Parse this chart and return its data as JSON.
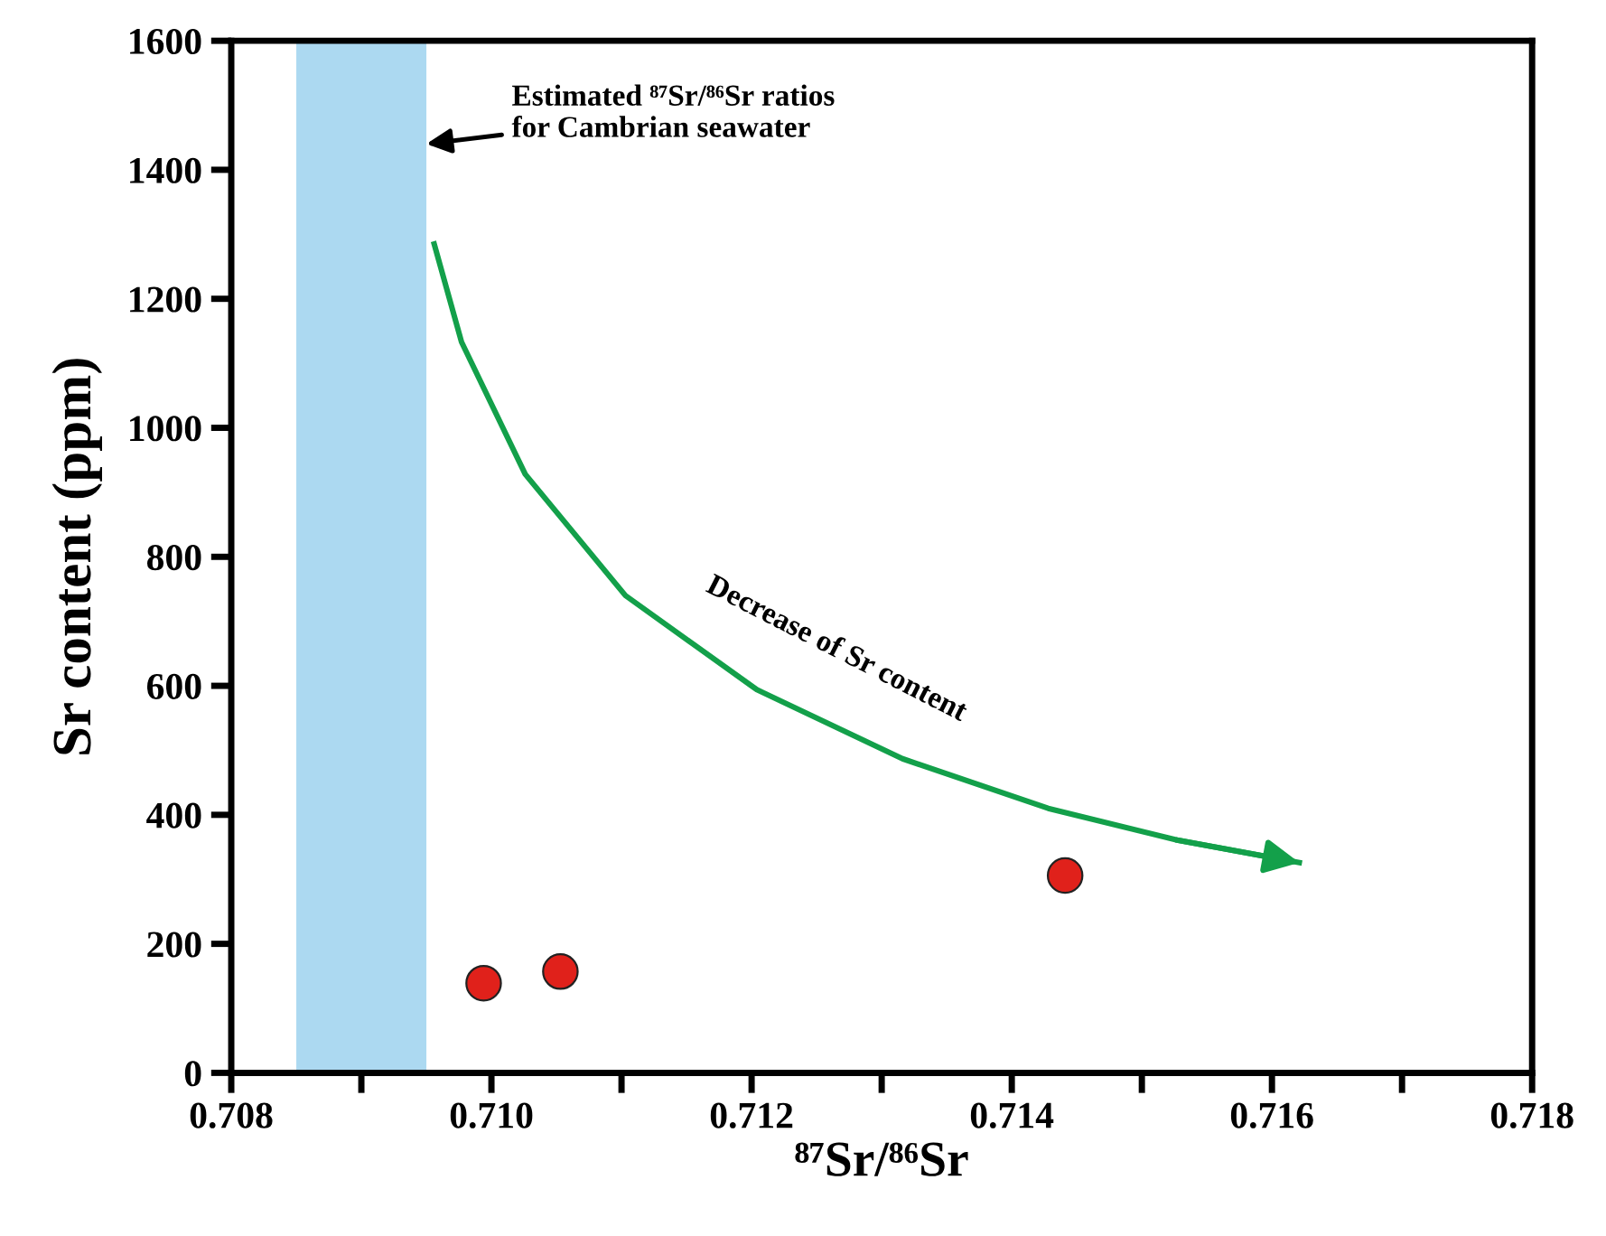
{
  "chart_data": {
    "type": "scatter",
    "xlabel": "⁸⁷Sr/⁸⁶Sr",
    "ylabel": "Sr content (ppm)",
    "series": [
      {
        "color": "#e0211b",
        "x": [
          0.70994,
          0.71053,
          0.71441
        ],
        "values": [
          139,
          157,
          306
        ],
        "marker": "circle"
      },
      {
        "type": "line",
        "color": "#13a04a",
        "x": [
          0.70956,
          0.70977,
          0.71026,
          0.71103,
          0.71204,
          0.71316,
          0.71428,
          0.71527,
          0.71621
        ],
        "values": [
          1285,
          1133,
          928,
          740,
          594,
          487,
          410,
          361,
          326
        ],
        "marker": "none"
      }
    ],
    "bands": [
      {
        "axis": "x",
        "from": 0.7085,
        "to": 0.7095,
        "color": "#acd9f1",
        "label": "Estimated ⁸⁷Sr/⁸⁶Sr ratios\nfor Cambrian seawater"
      }
    ],
    "annotations": [
      "Decrease of Sr content"
    ],
    "xlim": [
      0.708,
      0.718
    ],
    "xticks": [
      {
        "value": 0.708,
        "label": "0.708"
      },
      {
        "value": 0.709,
        "label": null
      },
      {
        "value": 0.71,
        "label": "0.710"
      },
      {
        "value": 0.711,
        "label": null
      },
      {
        "value": 0.712,
        "label": "0.712"
      },
      {
        "value": 0.713,
        "label": null
      },
      {
        "value": 0.714,
        "label": "0.714"
      },
      {
        "value": 0.715,
        "label": null
      },
      {
        "value": 0.716,
        "label": "0.716"
      },
      {
        "value": 0.717,
        "label": null
      },
      {
        "value": 0.718,
        "label": "0.718"
      }
    ],
    "ylim": [
      0,
      1600
    ],
    "yticks": [
      0,
      200,
      400,
      600,
      800,
      1000,
      1200,
      1400,
      1600
    ],
    "grid": false,
    "legend": false
  }
}
